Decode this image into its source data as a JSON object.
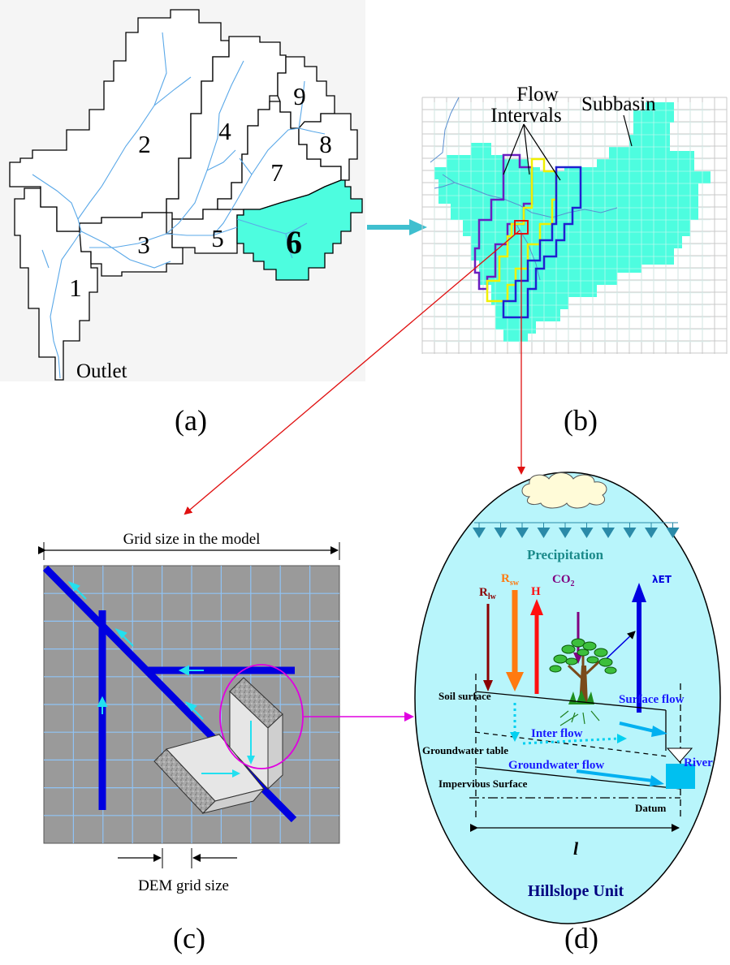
{
  "panel_a": {
    "subbasins": [
      "1",
      "2",
      "3",
      "4",
      "5",
      "6",
      "7",
      "8",
      "9"
    ],
    "outlet_label": "Outlet",
    "caption": "(a)"
  },
  "panel_b": {
    "flow_intervals_line1": "Flow",
    "flow_intervals_line2": "Intervals",
    "subbasin_label": "Subbasin",
    "caption": "(b)"
  },
  "panel_c": {
    "grid_size_label": "Grid size in the model",
    "dem_grid_label": "DEM grid size",
    "caption": "(c)"
  },
  "panel_d": {
    "precipitation": "Precipitation",
    "r_lw": "R",
    "r_lw_sub": "lw",
    "r_sw": "R",
    "r_sw_sub": "sw",
    "h": "H",
    "co2": "CO",
    "co2_sub": "2",
    "let": "λET",
    "soil_surface": "Soil surface",
    "surface_flow": "Surface flow",
    "inter_flow": "Inter flow",
    "groundwater_table": "Groundwater table",
    "river": "River",
    "groundwater_flow": "Groundwater flow",
    "impervious_surface": "Impervious Surface",
    "datum": "Datum",
    "length": "l",
    "hillslope_unit": "Hillslope Unit",
    "caption": "(d)"
  },
  "colors": {
    "highlight": "#4dfddf",
    "stream": "#5aa8e8",
    "river_blue": "#0000e0",
    "arrow_teal": "#3fbfcf",
    "pointer_red": "#e01010",
    "pointer_magenta": "#e000e0",
    "ellipse_fill": "#b8f5fb",
    "dem_gray": "#9a9a9a",
    "dem_grid": "#8fc3f5",
    "interval_purple": "#6a1fc0",
    "interval_yellow": "#f0f000",
    "interval_blue": "#2020d0",
    "label_navy": "#000080",
    "label_blue": "#1a1aff"
  }
}
